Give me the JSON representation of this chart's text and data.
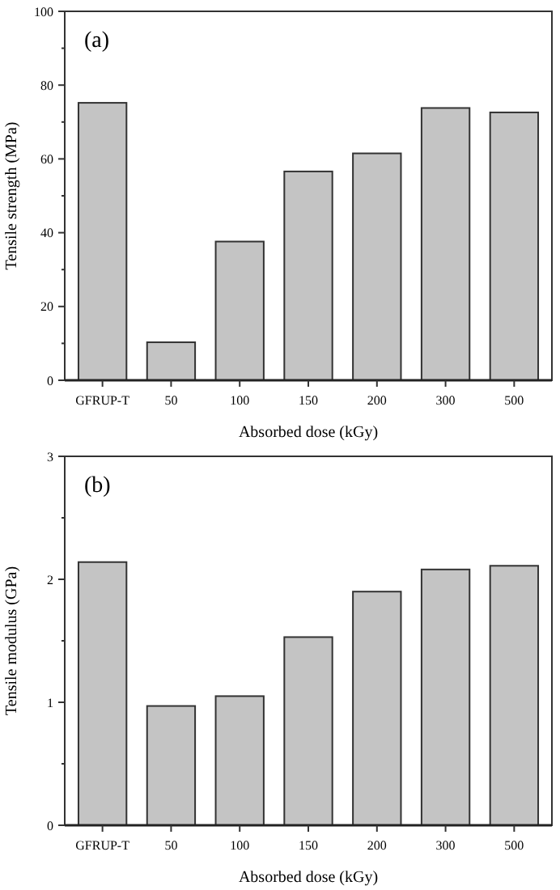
{
  "chart_data": [
    {
      "type": "bar",
      "title": "(a)",
      "xlabel": "Absorbed dose (kGy)",
      "ylabel": "Tensile strength (MPa)",
      "categories": [
        "GFRUP-T",
        "50",
        "100",
        "150",
        "200",
        "300",
        "500"
      ],
      "values": [
        75.2,
        10.3,
        37.6,
        56.6,
        61.5,
        73.8,
        72.6
      ],
      "color": "#c4c4c4",
      "ylim": [
        0,
        100
      ],
      "yticks": [
        0,
        20,
        40,
        60,
        80,
        100
      ],
      "grid": false
    },
    {
      "type": "bar",
      "title": "(b)",
      "xlabel": "Absorbed dose (kGy)",
      "ylabel": "Tensile modulus (GPa)",
      "categories": [
        "GFRUP-T",
        "50",
        "100",
        "150",
        "200",
        "300",
        "500"
      ],
      "values": [
        2.14,
        0.97,
        1.05,
        1.53,
        1.9,
        2.08,
        2.11
      ],
      "color": "#c4c4c4",
      "ylim": [
        0,
        3
      ],
      "yticks": [
        0,
        1,
        2,
        3
      ],
      "grid": false
    }
  ]
}
